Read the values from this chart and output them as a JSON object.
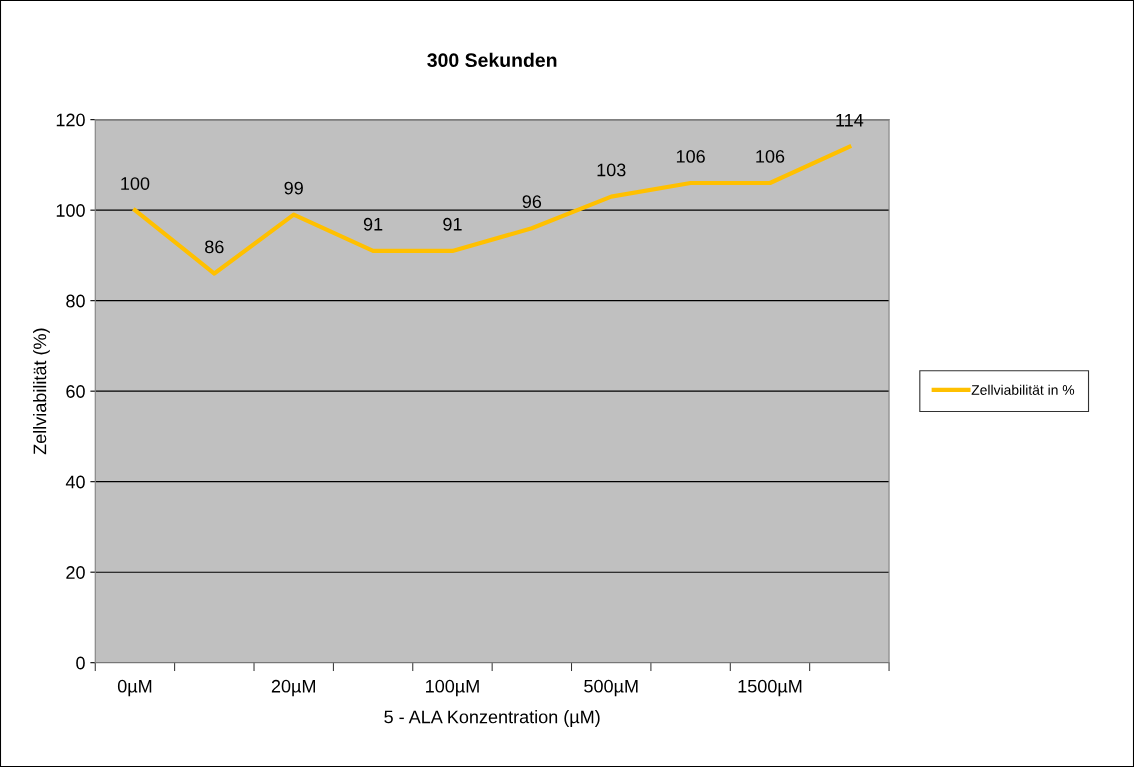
{
  "chart_data": {
    "type": "line",
    "title": "300 Sekunden",
    "xlabel": "5 - ALA Konzentration (µM)",
    "ylabel": "Zellviabilität (%)",
    "categories": [
      "0µM",
      null,
      "20µM",
      null,
      "100µM",
      null,
      "500µM",
      null,
      "1500µM",
      null
    ],
    "series": [
      {
        "name": "Zellviabilität in %",
        "color": "#ffc000",
        "values": [
          100,
          86,
          99,
          91,
          91,
          96,
          103,
          106,
          106,
          114
        ]
      }
    ],
    "ylim": [
      0,
      120
    ],
    "yticks": [
      0,
      20,
      40,
      60,
      80,
      100,
      120
    ],
    "grid": "y",
    "legend": "right",
    "data_labels": true,
    "marker": "none",
    "line_style": "solid"
  }
}
